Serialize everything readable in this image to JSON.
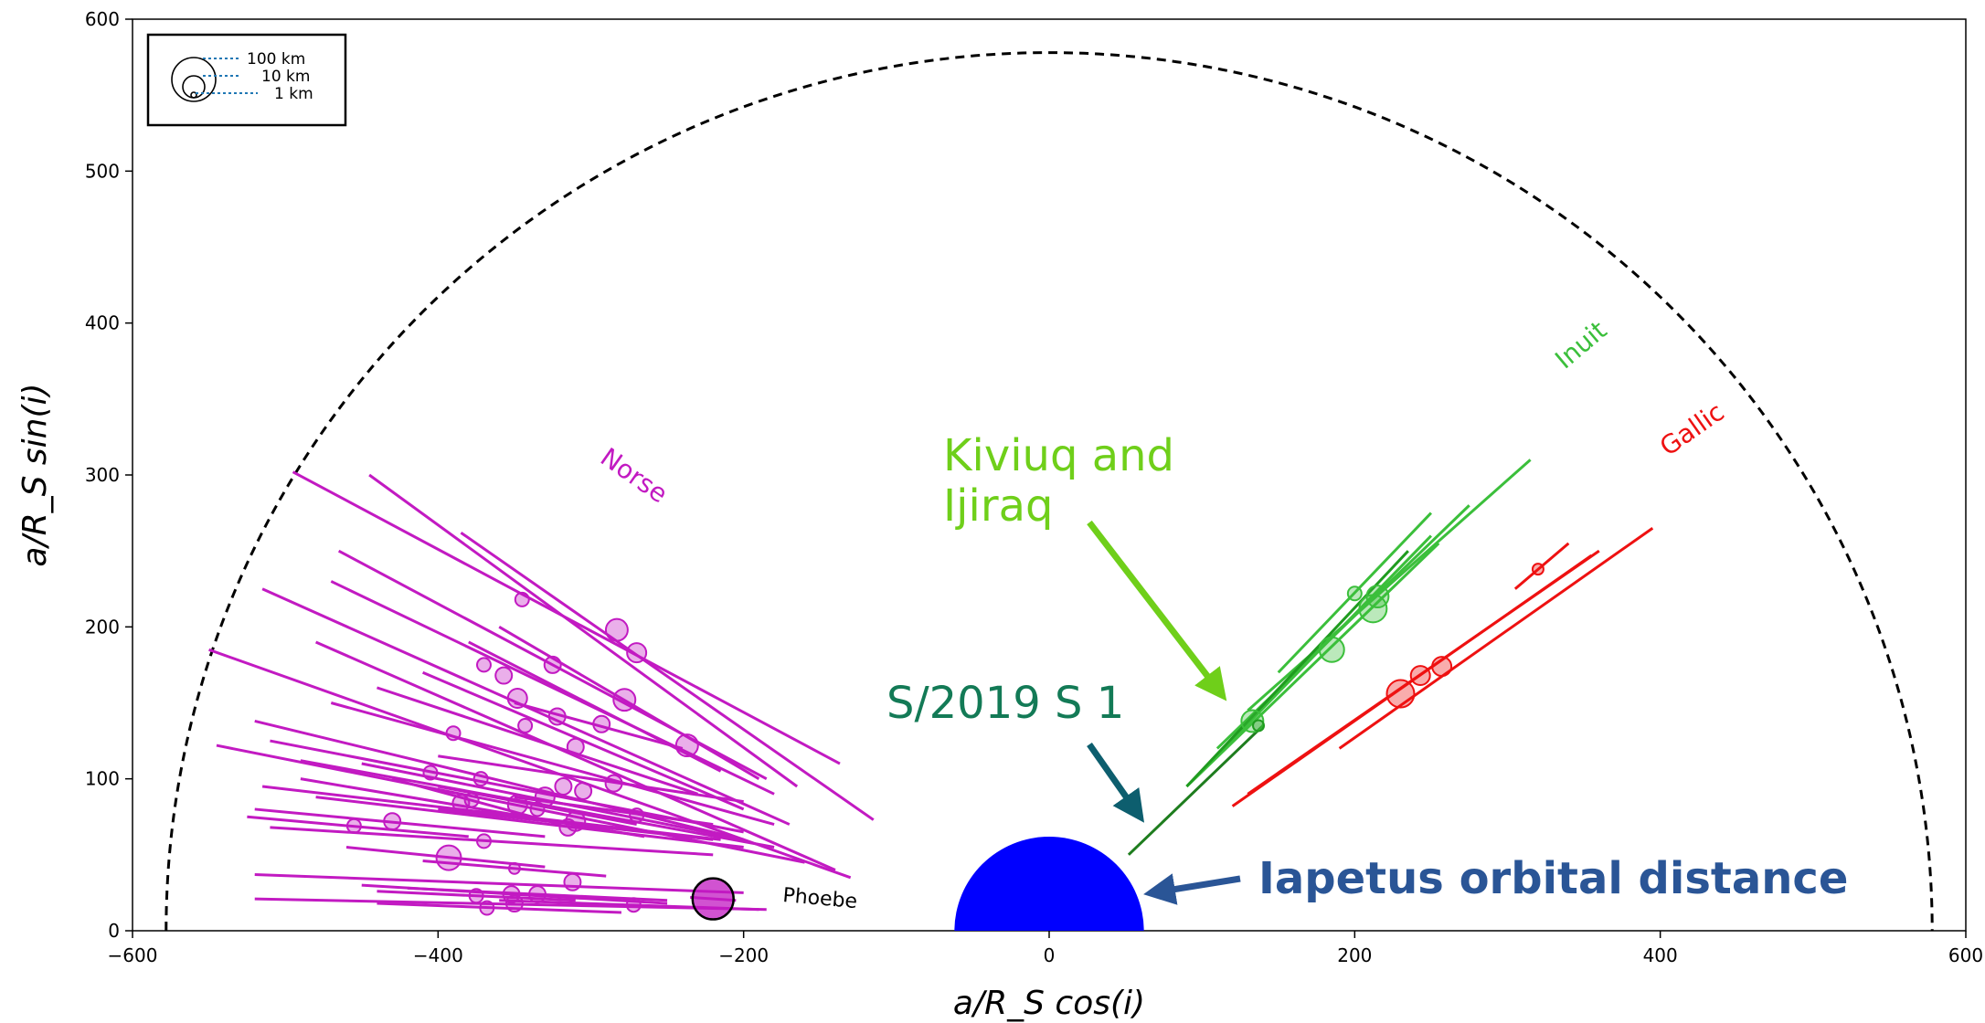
{
  "chart_data": {
    "type": "scatter",
    "title": "",
    "xlabel": "a/R_S cos(i)",
    "ylabel": "a/R_S sin(i)",
    "xlim": [
      -600,
      600
    ],
    "ylim": [
      0,
      600
    ],
    "xticks": [
      -600,
      -400,
      -200,
      0,
      200,
      400,
      600
    ],
    "yticks": [
      0,
      100,
      200,
      300,
      400,
      500,
      600
    ],
    "grid": false,
    "colors": {
      "norse": "#c21ac2",
      "inuit": "#3bbf3b",
      "gallic": "#ee1111",
      "kiviuq": "#6fcf1a",
      "s2019": "#137a56",
      "iapetus_text": "#2a5596",
      "iapetus_fill": "#0000ff",
      "s2019_line": "#1e7d1e"
    },
    "hill_radius_arc": 578,
    "iapetus_radius": 62,
    "series": [
      {
        "name": "Norse",
        "points": [
          {
            "x": -345,
            "y": 218,
            "r": 5,
            "x1": -445,
            "y1": 300,
            "x2": -165,
            "y2": 95
          },
          {
            "x": -283,
            "y": 198,
            "r": 8,
            "x1": -385,
            "y1": 262,
            "x2": -115,
            "y2": 73
          },
          {
            "x": -270,
            "y": 183,
            "r": 7,
            "x1": -495,
            "y1": 302,
            "x2": -137,
            "y2": 110
          },
          {
            "x": -370,
            "y": 175,
            "r": 5,
            "x1": -465,
            "y1": 250,
            "x2": -185,
            "y2": 100
          },
          {
            "x": -357,
            "y": 168,
            "r": 6,
            "x1": -470,
            "y1": 230,
            "x2": -180,
            "y2": 90
          },
          {
            "x": -325,
            "y": 175,
            "r": 6,
            "x1": -515,
            "y1": 225,
            "x2": -170,
            "y2": 70
          },
          {
            "x": -348,
            "y": 153,
            "r": 7,
            "x1": -480,
            "y1": 190,
            "x2": -140,
            "y2": 40
          },
          {
            "x": -278,
            "y": 152,
            "r": 8,
            "x1": -360,
            "y1": 200,
            "x2": -190,
            "y2": 100
          },
          {
            "x": -322,
            "y": 141,
            "r": 6,
            "x1": -410,
            "y1": 170,
            "x2": -200,
            "y2": 80
          },
          {
            "x": -343,
            "y": 135,
            "r": 5,
            "x1": -440,
            "y1": 160,
            "x2": -230,
            "y2": 90
          },
          {
            "x": -293,
            "y": 136,
            "r": 6,
            "x1": -350,
            "y1": 150,
            "x2": -240,
            "y2": 120
          },
          {
            "x": -390,
            "y": 130,
            "r": 5,
            "x1": -550,
            "y1": 185,
            "x2": -130,
            "y2": 35
          },
          {
            "x": -310,
            "y": 121,
            "r": 6,
            "x1": -470,
            "y1": 150,
            "x2": -180,
            "y2": 70
          },
          {
            "x": -237,
            "y": 122,
            "r": 8,
            "x1": -380,
            "y1": 190,
            "x2": -215,
            "y2": 105
          },
          {
            "x": -405,
            "y": 104,
            "r": 5,
            "x1": -520,
            "y1": 138,
            "x2": -200,
            "y2": 60
          },
          {
            "x": -372,
            "y": 100,
            "r": 5,
            "x1": -510,
            "y1": 125,
            "x2": -200,
            "y2": 65
          },
          {
            "x": -318,
            "y": 95,
            "r": 6,
            "x1": -545,
            "y1": 122,
            "x2": -160,
            "y2": 45
          },
          {
            "x": -285,
            "y": 97,
            "r": 6,
            "x1": -400,
            "y1": 115,
            "x2": -200,
            "y2": 85
          },
          {
            "x": -305,
            "y": 92,
            "r": 6,
            "x1": -490,
            "y1": 112,
            "x2": -180,
            "y2": 55
          },
          {
            "x": -330,
            "y": 88,
            "r": 7,
            "x1": -450,
            "y1": 110,
            "x2": -200,
            "y2": 60
          },
          {
            "x": -385,
            "y": 84,
            "r": 6,
            "x1": -515,
            "y1": 95,
            "x2": -215,
            "y2": 60
          },
          {
            "x": -378,
            "y": 86,
            "r": 5,
            "x1": -430,
            "y1": 100,
            "x2": -320,
            "y2": 70
          },
          {
            "x": -348,
            "y": 83,
            "r": 7,
            "x1": -490,
            "y1": 100,
            "x2": -265,
            "y2": 62
          },
          {
            "x": -335,
            "y": 80,
            "r": 5,
            "x1": -400,
            "y1": 95,
            "x2": -270,
            "y2": 70
          },
          {
            "x": -270,
            "y": 76,
            "r": 5,
            "x1": -350,
            "y1": 88,
            "x2": -220,
            "y2": 70
          },
          {
            "x": -430,
            "y": 72,
            "r": 6,
            "x1": -520,
            "y1": 80,
            "x2": -330,
            "y2": 62
          },
          {
            "x": -310,
            "y": 72,
            "r": 7,
            "x1": -480,
            "y1": 88,
            "x2": -200,
            "y2": 55
          },
          {
            "x": -315,
            "y": 68,
            "r": 6,
            "x1": -400,
            "y1": 80,
            "x2": -220,
            "y2": 60
          },
          {
            "x": -455,
            "y": 69,
            "r": 5,
            "x1": -525,
            "y1": 75,
            "x2": -380,
            "y2": 62
          },
          {
            "x": -370,
            "y": 59,
            "r": 5,
            "x1": -510,
            "y1": 68,
            "x2": -220,
            "y2": 50
          },
          {
            "x": -393,
            "y": 48,
            "r": 9,
            "x1": -460,
            "y1": 55,
            "x2": -330,
            "y2": 42
          },
          {
            "x": -350,
            "y": 41,
            "r": 4,
            "x1": -410,
            "y1": 46,
            "x2": -290,
            "y2": 36
          },
          {
            "x": -312,
            "y": 32,
            "r": 6,
            "x1": -520,
            "y1": 37,
            "x2": -200,
            "y2": 25
          },
          {
            "x": -352,
            "y": 24,
            "r": 6,
            "x1": -450,
            "y1": 30,
            "x2": -250,
            "y2": 18
          },
          {
            "x": -335,
            "y": 24,
            "r": 6,
            "x1": -420,
            "y1": 28,
            "x2": -250,
            "y2": 20
          },
          {
            "x": -375,
            "y": 23,
            "r": 5,
            "x1": -440,
            "y1": 26,
            "x2": -310,
            "y2": 20
          },
          {
            "x": -350,
            "y": 18,
            "r": 6,
            "x1": -520,
            "y1": 21,
            "x2": -185,
            "y2": 14
          },
          {
            "x": -368,
            "y": 15,
            "r": 5,
            "x1": -440,
            "y1": 18,
            "x2": -280,
            "y2": 12
          },
          {
            "x": -272,
            "y": 17,
            "r": 5,
            "x1": -360,
            "y1": 20,
            "x2": -190,
            "y2": 14
          }
        ]
      },
      {
        "name": "Phoebe",
        "points": [
          {
            "x": -220,
            "y": 21,
            "r": 15,
            "x1": -235,
            "y1": 22,
            "x2": -205,
            "y2": 20
          }
        ]
      },
      {
        "name": "Inuit",
        "points": [
          {
            "x": 200,
            "y": 222,
            "r": 5,
            "x1": 150,
            "y1": 170,
            "x2": 250,
            "y2": 275
          },
          {
            "x": 215,
            "y": 220,
            "r": 8,
            "x1": 130,
            "y1": 145,
            "x2": 315,
            "y2": 310
          },
          {
            "x": 212,
            "y": 212,
            "r": 10,
            "x1": 110,
            "y1": 120,
            "x2": 275,
            "y2": 280
          },
          {
            "x": 185,
            "y": 185,
            "r": 9,
            "x1": 90,
            "y1": 95,
            "x2": 255,
            "y2": 255
          },
          {
            "x": 133,
            "y": 138,
            "r": 8,
            "x1": 95,
            "y1": 100,
            "x2": 250,
            "y2": 260
          }
        ]
      },
      {
        "name": "Kiviuq and Ijiraq",
        "points": [
          {
            "x": 137,
            "y": 135,
            "r": 4,
            "x1": 90,
            "y1": 95,
            "x2": 235,
            "y2": 250
          }
        ]
      },
      {
        "name": "S/2019 S 1",
        "points": [
          {
            "x": 52,
            "y": 50,
            "r": 0,
            "x1": 52,
            "y1": 50,
            "x2": 140,
            "y2": 135
          }
        ]
      },
      {
        "name": "Gallic",
        "points": [
          {
            "x": 320,
            "y": 238,
            "r": 4,
            "x1": 305,
            "y1": 225,
            "x2": 340,
            "y2": 255
          },
          {
            "x": 257,
            "y": 174,
            "r": 7,
            "x1": 190,
            "y1": 120,
            "x2": 395,
            "y2": 265
          },
          {
            "x": 243,
            "y": 168,
            "r": 7,
            "x1": 120,
            "y1": 82,
            "x2": 355,
            "y2": 247
          },
          {
            "x": 230,
            "y": 156,
            "r": 10,
            "x1": 130,
            "y1": 90,
            "x2": 360,
            "y2": 250
          }
        ]
      }
    ],
    "legend": {
      "placement": "top-left",
      "entries": [
        "100 km",
        "10 km",
        "1 km"
      ]
    },
    "labels": {
      "norse": "Norse",
      "inuit": "Inuit",
      "gallic": "Gallic",
      "phoebe": "Phoebe",
      "kiviuq": "Kiviuq and",
      "ijiraq": "Ijiraq",
      "s2019": "S/2019 S 1",
      "iapetus": "Iapetus orbital distance"
    }
  }
}
